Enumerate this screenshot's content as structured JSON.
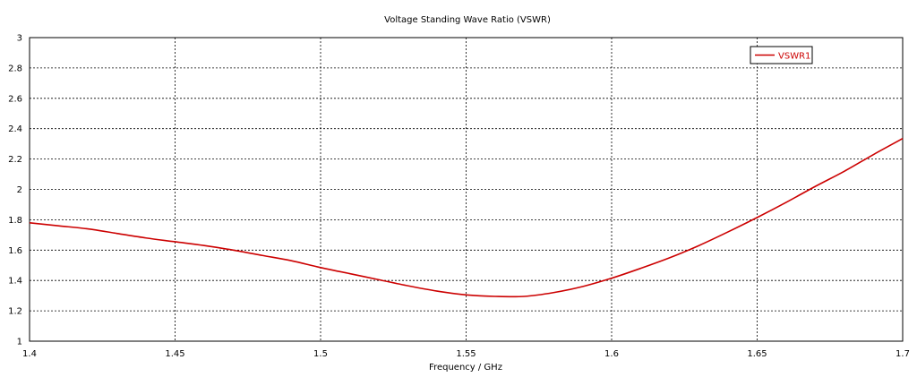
{
  "chart_data": {
    "type": "line",
    "title": "Voltage Standing Wave Ratio (VSWR)",
    "xlabel": "Frequency / GHz",
    "ylabel": "",
    "xlim": [
      1.4,
      1.7
    ],
    "ylim": [
      1,
      3
    ],
    "xticks": [
      "1.4",
      "1.45",
      "1.5",
      "1.55",
      "1.6",
      "1.65",
      "1.7"
    ],
    "yticks": [
      "1",
      "1.2",
      "1.4",
      "1.6",
      "1.8",
      "2",
      "2.2",
      "2.4",
      "2.6",
      "2.8",
      "3"
    ],
    "grid": true,
    "legend_position": "top-right",
    "series": [
      {
        "name": "VSWR1",
        "color": "#cc0000",
        "x": [
          1.4,
          1.41,
          1.42,
          1.43,
          1.44,
          1.45,
          1.46,
          1.47,
          1.48,
          1.49,
          1.5,
          1.51,
          1.52,
          1.53,
          1.54,
          1.55,
          1.56,
          1.57,
          1.58,
          1.59,
          1.6,
          1.61,
          1.62,
          1.63,
          1.64,
          1.65,
          1.66,
          1.67,
          1.68,
          1.69,
          1.7
        ],
        "y": [
          1.78,
          1.76,
          1.74,
          1.71,
          1.68,
          1.655,
          1.63,
          1.6,
          1.565,
          1.53,
          1.485,
          1.445,
          1.405,
          1.365,
          1.33,
          1.305,
          1.295,
          1.295,
          1.32,
          1.36,
          1.415,
          1.48,
          1.55,
          1.63,
          1.72,
          1.815,
          1.915,
          2.02,
          2.12,
          2.23,
          2.335
        ]
      }
    ]
  }
}
